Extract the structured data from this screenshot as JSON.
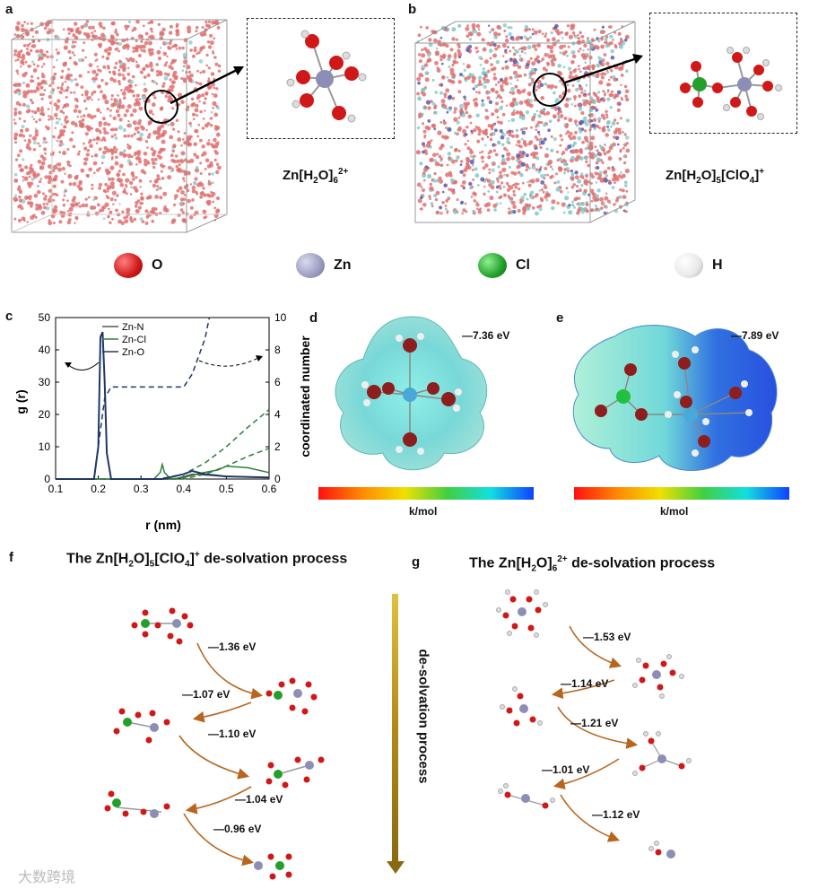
{
  "panels": {
    "a": "a",
    "b": "b",
    "c": "c",
    "d": "d",
    "e": "e",
    "f": "f",
    "g": "g"
  },
  "formulas": {
    "a": {
      "main": "Zn[H",
      "s1": "2",
      "mid": "O]",
      "s2": "6",
      "sup": "2+"
    },
    "b": {
      "main": "Zn[H",
      "s1": "2",
      "mid": "O]",
      "s2": "5",
      "mid2": "[ClO",
      "s3": "4",
      "end": "]",
      "sup": "+"
    }
  },
  "legend": [
    {
      "label": "O",
      "color": "#d81e1e"
    },
    {
      "label": "Zn",
      "color": "#9a9cc0"
    },
    {
      "label": "Cl",
      "color": "#22a02a"
    },
    {
      "label": "H",
      "color": "#e8e8e8"
    }
  ],
  "chart_data": {
    "type": "line",
    "xlabel": "r (nm)",
    "ylabel": "g (r)",
    "y2label": "coordinated number",
    "xlim": [
      0.1,
      0.6
    ],
    "ylim": [
      0,
      50
    ],
    "y2lim": [
      0,
      10
    ],
    "xticks": [
      "0.1",
      "0.2",
      "0.3",
      "0.4",
      "0.5",
      "0.6"
    ],
    "yticks": [
      "0",
      "10",
      "20",
      "30",
      "40",
      "50"
    ],
    "y2ticks": [
      "0",
      "2",
      "4",
      "6",
      "8",
      "10"
    ],
    "legend_position": "top-left",
    "series": [
      {
        "name": "Zn-N",
        "color": "#555555",
        "axis": "left",
        "x": [
          0.1,
          0.38,
          0.42,
          0.46,
          0.5,
          0.55,
          0.6
        ],
        "y": [
          0,
          0,
          1.5,
          1.2,
          0.8,
          0.6,
          0.5
        ]
      },
      {
        "name": "Zn-Cl",
        "color": "#2e7d3a",
        "axis": "left",
        "x": [
          0.1,
          0.33,
          0.345,
          0.35,
          0.355,
          0.37,
          0.4,
          0.44,
          0.48,
          0.5,
          0.55,
          0.6
        ],
        "y": [
          0,
          0,
          2,
          4.5,
          2,
          0,
          0.5,
          1.8,
          2.8,
          4,
          3.5,
          2
        ]
      },
      {
        "name": "Zn-O",
        "color": "#1f3864",
        "axis": "left",
        "x": [
          0.1,
          0.19,
          0.2,
          0.205,
          0.21,
          0.215,
          0.22,
          0.23,
          0.35,
          0.4,
          0.42,
          0.45,
          0.5,
          0.6
        ],
        "y": [
          0,
          0,
          10,
          44,
          45.5,
          30,
          8,
          0,
          0,
          1.5,
          2.5,
          1.5,
          0.8,
          0.5
        ]
      }
    ],
    "cn_series": [
      {
        "name": "Zn-O CN",
        "color": "#1f3864",
        "x": [
          0.1,
          0.19,
          0.215,
          0.23,
          0.4,
          0.42,
          0.45,
          0.46
        ],
        "y": [
          0,
          0,
          5,
          5.7,
          5.7,
          6.5,
          8.7,
          10
        ]
      },
      {
        "name": "Zn-Cl CN",
        "color": "#2e7d3a",
        "x": [
          0.1,
          0.34,
          0.4,
          0.45,
          0.5,
          0.55,
          0.6
        ],
        "y": [
          0,
          0,
          0.3,
          1.0,
          2.0,
          3.2,
          4.3
        ]
      },
      {
        "name": "Zn-N CN",
        "color": "#2e7d3a",
        "x": [
          0.1,
          0.4,
          0.45,
          0.5,
          0.55,
          0.6
        ],
        "y": [
          0,
          0,
          0.3,
          0.8,
          1.4,
          1.9
        ]
      }
    ]
  },
  "esp": {
    "d_energy": "7.36 eV",
    "e_energy": "7.89 eV",
    "cbar_label": "k/mol"
  },
  "f": {
    "title_pre": "The Zn[H",
    "title_s1": "2",
    "title_mid": "O]",
    "title_s2": "5",
    "title_mid2": "[ClO",
    "title_s3": "4",
    "title_end": "]",
    "title_sup": "+",
    "title_post": " de-solvation process",
    "energies": [
      "1.36 eV",
      "1.07 eV",
      "1.10 eV",
      "1.04 eV",
      "0.96 eV"
    ]
  },
  "g": {
    "title_pre": "The  Zn[H",
    "title_s1": "2",
    "title_mid": "O]",
    "title_s2": "6",
    "title_sup": "2+",
    "title_post": " de-solvation process",
    "energies": [
      "1.53 eV",
      "1.14 eV",
      "1.21 eV",
      "1.01 eV",
      "1.12 eV"
    ]
  },
  "center_arrow_label": "de-solvation process",
  "watermark": "大数跨境"
}
